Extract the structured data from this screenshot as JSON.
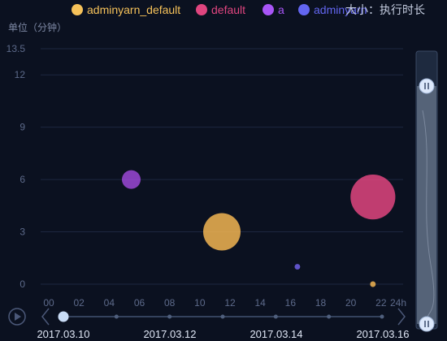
{
  "legend": {
    "items": [
      {
        "name": "adminyarn_default",
        "color": "#f6c25a"
      },
      {
        "name": "default",
        "color": "#e0457f"
      },
      {
        "name": "a",
        "color": "#a855f7"
      },
      {
        "name": "adminyarn",
        "color": "#6366f1"
      }
    ],
    "size_note": "大小：执行时长"
  },
  "chart_data": {
    "type": "scatter",
    "ylabel": "单位（分钟）",
    "ylim": [
      0,
      13.5
    ],
    "y_ticks": [
      "0",
      "3",
      "6",
      "9",
      "12",
      "13.5"
    ],
    "xlim": [
      0,
      24
    ],
    "x_ticks": [
      "00",
      "02",
      "04",
      "06",
      "08",
      "10",
      "12",
      "14",
      "16",
      "18",
      "20",
      "22",
      "24h"
    ],
    "bubble_size_encoding": "执行时长",
    "series": [
      {
        "name": "adminyarn_default",
        "color": "#f2b552",
        "points": [
          {
            "x": 12,
            "y": 3,
            "size": 1.0
          },
          {
            "x": 22,
            "y": 0,
            "size": 0.15
          }
        ]
      },
      {
        "name": "default",
        "color": "#e0457f",
        "points": [
          {
            "x": 22,
            "y": 5,
            "size": 1.2
          }
        ]
      },
      {
        "name": "a",
        "color": "#9b48d6",
        "points": [
          {
            "x": 6,
            "y": 6,
            "size": 0.5
          }
        ]
      },
      {
        "name": "adminyarn",
        "color": "#6f5fe6",
        "points": [
          {
            "x": 17,
            "y": 1,
            "size": 0.15
          }
        ]
      }
    ]
  },
  "timeline": {
    "dates": [
      "2017.03.10",
      "2017.03.12",
      "2017.03.14",
      "2017.03.16"
    ],
    "current_index": 0,
    "node_count": 7
  },
  "zoom_slider": {
    "start": 0.0,
    "end": 0.89
  }
}
